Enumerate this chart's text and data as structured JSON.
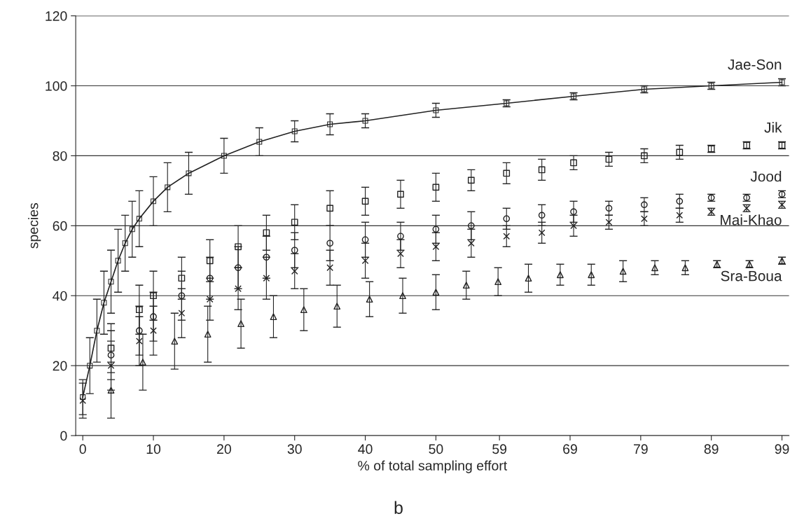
{
  "chart_data": {
    "type": "scatter",
    "xlabel": "% of total sampling effort",
    "ylabel": "species",
    "annotations": [
      "b"
    ],
    "xlim": [
      -1,
      100
    ],
    "xticks": [
      0,
      10,
      20,
      30,
      40,
      50,
      59,
      69,
      79,
      89,
      99
    ],
    "ylim": [
      0,
      120
    ],
    "yticks": [
      0,
      20,
      40,
      60,
      80,
      100,
      120
    ],
    "grid": "y",
    "legend": false,
    "series": [
      {
        "name": "Jae-Son",
        "type": "line",
        "marker": "square",
        "color": "#222222",
        "x": [
          0,
          1,
          2,
          3,
          4,
          5,
          6,
          7,
          8,
          10,
          12,
          15,
          20,
          25,
          30,
          35,
          40,
          50,
          60,
          69.5,
          79.5,
          89,
          99
        ],
        "values": [
          11,
          20,
          30,
          38,
          44,
          50,
          55,
          59,
          62,
          67,
          71,
          75,
          80,
          84,
          87,
          89,
          90,
          93,
          95,
          97,
          99,
          100,
          101
        ],
        "errors": [
          5,
          8,
          9,
          9,
          9,
          9,
          8,
          8,
          8,
          7,
          7,
          6,
          5,
          4,
          3,
          3,
          2,
          2,
          1,
          1,
          1,
          1,
          1
        ]
      },
      {
        "name": "Jik",
        "marker": "square",
        "color": "#222222",
        "x": [
          4,
          8,
          10,
          14,
          18,
          22,
          26,
          30,
          35,
          40,
          45,
          50,
          55,
          60,
          65,
          69.5,
          74.5,
          79.5,
          84.5,
          89,
          94,
          99
        ],
        "values": [
          25,
          36,
          40,
          45,
          50,
          54,
          58,
          61,
          65,
          67,
          69,
          71,
          73,
          75,
          76,
          78,
          79,
          80,
          81,
          82,
          83,
          83
        ],
        "errors": [
          7,
          7,
          7,
          6,
          6,
          6,
          5,
          5,
          5,
          4,
          4,
          4,
          3,
          3,
          3,
          2,
          2,
          2,
          2,
          1,
          1,
          1
        ]
      },
      {
        "name": "Jood",
        "marker": "circle",
        "color": "#222222",
        "x": [
          4,
          8,
          10,
          14,
          18,
          22,
          26,
          30,
          35,
          40,
          45,
          50,
          55,
          60,
          65,
          69.5,
          74.5,
          79.5,
          84.5,
          89,
          94,
          99
        ],
        "values": [
          23,
          30,
          34,
          40,
          45,
          48,
          51,
          53,
          55,
          56,
          57,
          59,
          60,
          62,
          63,
          64,
          65,
          66,
          67,
          68,
          68,
          69
        ],
        "errors": [
          7,
          7,
          7,
          7,
          6,
          6,
          6,
          5,
          5,
          5,
          4,
          4,
          4,
          3,
          3,
          3,
          2,
          2,
          2,
          1,
          1,
          1
        ]
      },
      {
        "name": "Mai-Khao",
        "marker": "cross",
        "color": "#222222",
        "x": [
          0,
          4,
          8,
          10,
          14,
          18,
          22,
          26,
          30,
          35,
          40,
          45,
          50,
          55,
          60,
          65,
          69.5,
          74.5,
          79.5,
          84.5,
          89,
          94,
          99
        ],
        "values": [
          10,
          20,
          27,
          30,
          35,
          39,
          42,
          45,
          47,
          48,
          50,
          52,
          54,
          55,
          57,
          58,
          60,
          61,
          62,
          63,
          64,
          65,
          66
        ],
        "errors": [
          5,
          7,
          7,
          7,
          7,
          6,
          6,
          6,
          5,
          5,
          5,
          4,
          4,
          4,
          3,
          3,
          3,
          2,
          2,
          2,
          1,
          1,
          1
        ]
      },
      {
        "name": "Sra-Boua",
        "marker": "triangle",
        "color": "#222222",
        "x": [
          4,
          8.5,
          13,
          17.7,
          22.4,
          27,
          31.3,
          36,
          40.6,
          45.3,
          50,
          54.3,
          58.8,
          63.1,
          67.6,
          72,
          76.5,
          81,
          85.3,
          89.8,
          94.4,
          99
        ],
        "values": [
          13,
          21,
          27,
          29,
          32,
          34,
          36,
          37,
          39,
          40,
          41,
          43,
          44,
          45,
          46,
          46,
          47,
          48,
          48,
          49,
          49,
          50
        ],
        "errors": [
          8,
          8,
          8,
          8,
          7,
          6,
          6,
          6,
          5,
          5,
          5,
          4,
          4,
          4,
          3,
          3,
          3,
          2,
          2,
          1,
          1,
          1
        ]
      }
    ]
  }
}
